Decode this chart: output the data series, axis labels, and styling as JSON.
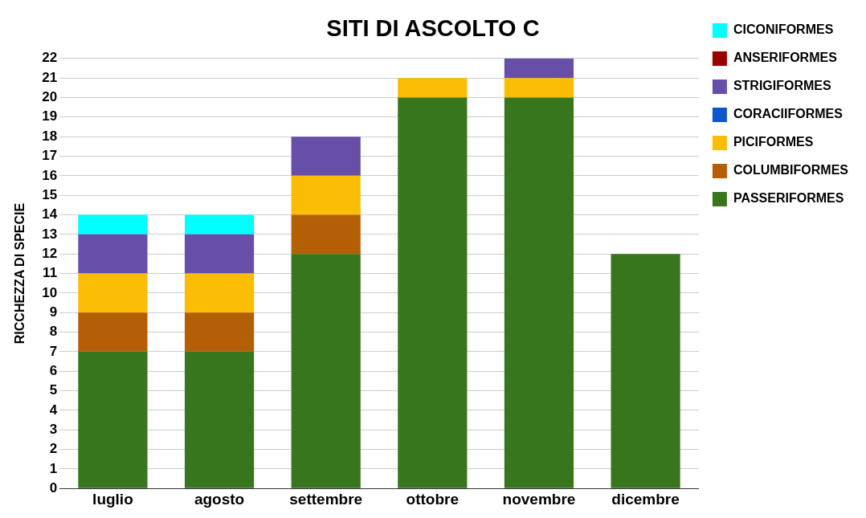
{
  "chart_data": {
    "type": "bar",
    "title": "SITI DI ASCOLTO C",
    "ylabel": "RICCHEZZA DI SPECIE",
    "categories": [
      "luglio",
      "agosto",
      "settembre",
      "ottobre",
      "novembre",
      "dicembre"
    ],
    "stacked": true,
    "ylim": [
      0,
      22
    ],
    "yticks": [
      0,
      1,
      2,
      3,
      4,
      5,
      6,
      7,
      8,
      9,
      10,
      11,
      12,
      13,
      14,
      15,
      16,
      17,
      18,
      19,
      20,
      21,
      22
    ],
    "grid": "y",
    "legend": "right",
    "series": [
      {
        "name": "PASSERIFORMES",
        "color": "#38761d",
        "values": [
          7,
          7,
          12,
          20,
          20,
          12
        ]
      },
      {
        "name": "COLUMBIFORMES",
        "color": "#b45f06",
        "values": [
          2,
          2,
          2,
          0,
          0,
          0
        ]
      },
      {
        "name": "PICIFORMES",
        "color": "#fbbc04",
        "values": [
          2,
          2,
          2,
          1,
          1,
          0
        ]
      },
      {
        "name": "CORACIIFORMES",
        "color": "#1155cc",
        "values": [
          0,
          0,
          0,
          0,
          0,
          0
        ]
      },
      {
        "name": "STRIGIFORMES",
        "color": "#674ea7",
        "values": [
          2,
          2,
          2,
          0,
          1,
          0
        ]
      },
      {
        "name": "ANSERIFORMES",
        "color": "#990000",
        "values": [
          0,
          0,
          0,
          0,
          0,
          0
        ]
      },
      {
        "name": "CICONIFORMES",
        "color": "#00ffff",
        "values": [
          1,
          1,
          0,
          0,
          0,
          0
        ]
      }
    ]
  }
}
